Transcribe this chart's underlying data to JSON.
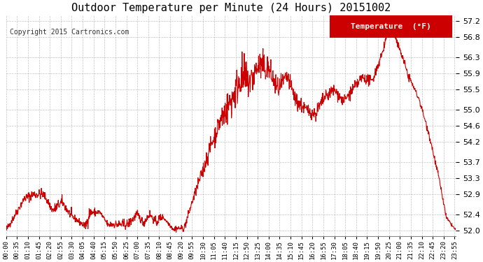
{
  "title": "Outdoor Temperature per Minute (24 Hours) 20151002",
  "copyright": "Copyright 2015 Cartronics.com",
  "legend_label": "Temperature  (°F)",
  "legend_bg": "#cc0000",
  "legend_text_color": "#ffffff",
  "line_color": "#cc0000",
  "background_color": "#ffffff",
  "grid_color": "#aaaaaa",
  "yticks": [
    52.0,
    52.4,
    52.9,
    53.3,
    53.7,
    54.2,
    54.6,
    55.0,
    55.5,
    55.9,
    56.3,
    56.8,
    57.2
  ],
  "ylim": [
    51.85,
    57.35
  ],
  "xlabel_fontsize": 6.5,
  "ylabel_fontsize": 8,
  "title_fontsize": 11,
  "xtick_interval_minutes": 35
}
